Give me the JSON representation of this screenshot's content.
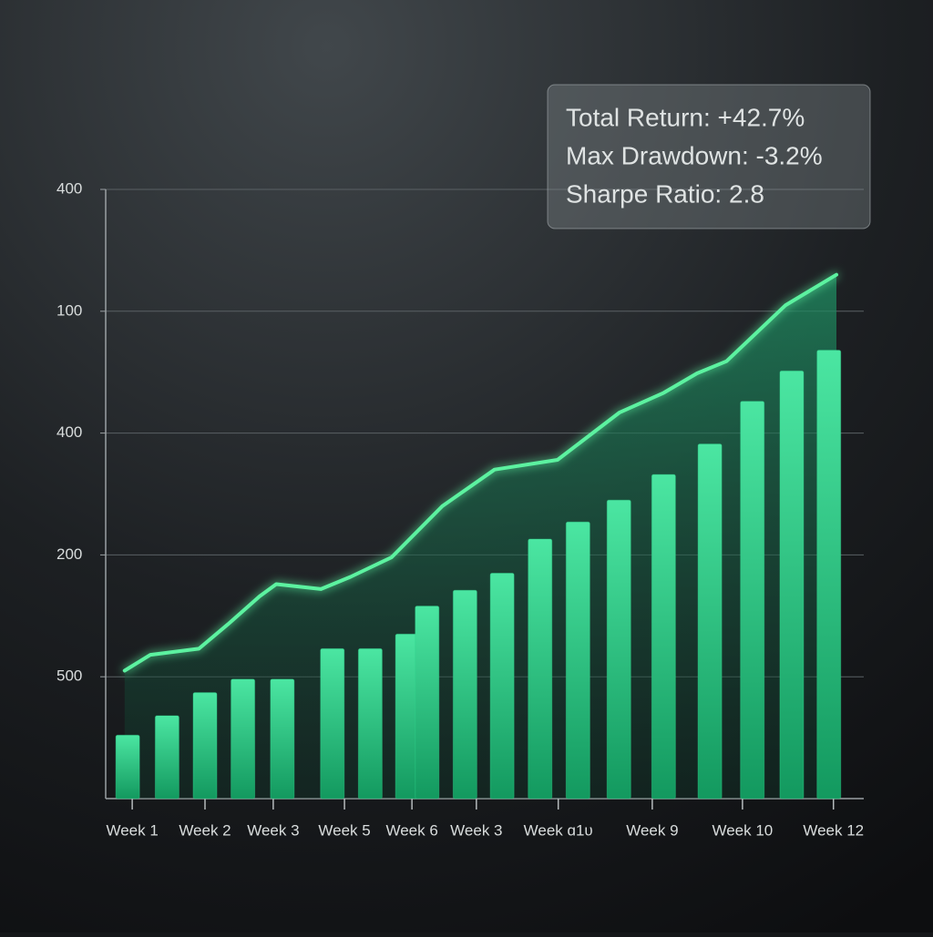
{
  "chart_data": {
    "type": "combo",
    "annotations": [
      "Total Return: +42.7%",
      "Max Drawdown: -3.2%",
      "Sharpe Ratio: 2.8"
    ],
    "xlim": [
      0,
      100
    ],
    "xticks": [
      {
        "value": 3.5,
        "label": "Week 1"
      },
      {
        "value": 13.1,
        "label": "Week 2"
      },
      {
        "value": 22.1,
        "label": "Week 3"
      },
      {
        "value": 31.5,
        "label": "Week 5"
      },
      {
        "value": 40.4,
        "label": "Week 6"
      },
      {
        "value": 48.9,
        "label": "Week 3"
      },
      {
        "value": 59.7,
        "label": "Week ɑ1ᴜ"
      },
      {
        "value": 72.1,
        "label": "Week 9"
      },
      {
        "value": 84.0,
        "label": "Week 10"
      },
      {
        "value": 96.0,
        "label": "Week 12"
      }
    ],
    "ylim": [
      0,
      5
    ],
    "yticks": [
      {
        "value": 1,
        "label": "500"
      },
      {
        "value": 2,
        "label": "200"
      },
      {
        "value": 3,
        "label": "400"
      },
      {
        "value": 4,
        "label": "100"
      },
      {
        "value": 5,
        "label": "400"
      }
    ],
    "grid": true,
    "bars": {
      "color": "#2fd48c",
      "x": [
        2.9,
        8.1,
        13.1,
        18.1,
        23.3,
        29.9,
        34.9,
        39.8,
        42.4,
        47.4,
        52.3,
        57.3,
        62.3,
        67.7,
        73.6,
        79.7,
        85.3,
        90.5,
        95.4
      ],
      "values": [
        0.52,
        0.68,
        0.87,
        0.98,
        0.98,
        1.23,
        1.23,
        1.35,
        1.58,
        1.71,
        1.85,
        2.13,
        2.27,
        2.45,
        2.66,
        2.91,
        3.26,
        3.51,
        3.68
      ]
    },
    "line": {
      "color": "#5cf2a0",
      "x": [
        2.5,
        5.9,
        12.3,
        16.1,
        20.3,
        22.5,
        28.4,
        32.3,
        37.7,
        44.4,
        51.3,
        59.6,
        67.8,
        73.6,
        78.0,
        81.9,
        89.7,
        96.4
      ],
      "values": [
        1.05,
        1.18,
        1.23,
        1.43,
        1.66,
        1.76,
        1.72,
        1.82,
        1.98,
        2.4,
        2.7,
        2.78,
        3.17,
        3.33,
        3.49,
        3.59,
        4.05,
        4.3
      ]
    }
  }
}
